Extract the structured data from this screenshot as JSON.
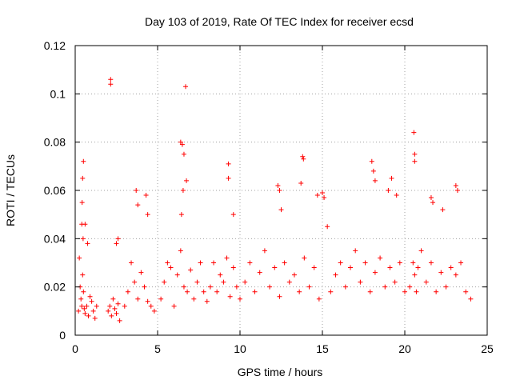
{
  "chart_data": {
    "type": "scatter",
    "title": "Day 103 of 2019, Rate Of TEC Index for receiver ecsd",
    "xlabel": "GPS time / hours",
    "ylabel": "ROTI / TECUs",
    "xlim": [
      0,
      25
    ],
    "ylim": [
      0,
      0.12
    ],
    "xticks": [
      0,
      5,
      10,
      15,
      20,
      25
    ],
    "xtick_labels": [
      "0",
      "5",
      "10",
      "15",
      "20",
      "25"
    ],
    "yticks": [
      0,
      0.02,
      0.04,
      0.06,
      0.08,
      0.1,
      0.12
    ],
    "ytick_labels": [
      "0",
      "0.02",
      "0.04",
      "0.06",
      "0.08",
      "0.1",
      "0.12"
    ],
    "grid": true,
    "marker": "+",
    "color": "#ff0000",
    "series": [
      {
        "name": "ROTI",
        "x": [
          0.2,
          0.3,
          0.35,
          0.4,
          0.45,
          0.5,
          0.55,
          0.6,
          0.7,
          0.8,
          0.9,
          1.0,
          1.1,
          1.2,
          1.3,
          0.25,
          0.4,
          0.45,
          0.5,
          0.42,
          0.48,
          0.6,
          0.75,
          2.0,
          2.1,
          2.2,
          2.3,
          2.4,
          2.5,
          2.6,
          2.7,
          2.15,
          2.15,
          2.5,
          2.6,
          3.0,
          3.2,
          3.4,
          3.6,
          3.8,
          4.0,
          4.2,
          4.4,
          4.6,
          4.8,
          3.7,
          3.8,
          4.3,
          4.4,
          5.2,
          5.4,
          5.6,
          5.8,
          6.0,
          6.2,
          6.4,
          6.6,
          6.8,
          7.0,
          7.2,
          7.4,
          7.6,
          7.8,
          6.4,
          6.5,
          6.6,
          6.7,
          6.55,
          6.75,
          6.45,
          8.0,
          8.2,
          8.4,
          8.6,
          8.8,
          9.0,
          9.2,
          9.4,
          9.6,
          9.8,
          9.3,
          9.3,
          9.6,
          10.0,
          10.3,
          10.6,
          10.9,
          11.2,
          11.5,
          11.8,
          12.1,
          12.4,
          12.7,
          13.0,
          13.3,
          13.6,
          13.9,
          14.2,
          14.5,
          14.8,
          12.3,
          12.4,
          12.5,
          13.8,
          13.85,
          13.7,
          14.7,
          15.0,
          15.1,
          15.3,
          15.5,
          15.8,
          16.1,
          16.4,
          16.7,
          17.0,
          17.3,
          17.6,
          17.9,
          18.2,
          18.5,
          18.8,
          19.1,
          19.4,
          19.7,
          20.0,
          18.0,
          18.1,
          18.2,
          19.0,
          19.2,
          19.5,
          20.3,
          20.5,
          20.6,
          20.7,
          20.8,
          21.0,
          21.3,
          21.6,
          21.9,
          22.2,
          22.5,
          22.8,
          23.1,
          23.4,
          23.7,
          24.0,
          20.55,
          20.6,
          20.6,
          21.6,
          21.7,
          23.1,
          23.2,
          22.3
        ],
        "y": [
          0.01,
          0.02,
          0.015,
          0.012,
          0.025,
          0.018,
          0.011,
          0.009,
          0.012,
          0.008,
          0.016,
          0.014,
          0.01,
          0.007,
          0.012,
          0.032,
          0.046,
          0.065,
          0.072,
          0.055,
          0.04,
          0.046,
          0.038,
          0.01,
          0.012,
          0.008,
          0.015,
          0.011,
          0.009,
          0.013,
          0.006,
          0.106,
          0.104,
          0.038,
          0.04,
          0.012,
          0.018,
          0.03,
          0.022,
          0.015,
          0.026,
          0.02,
          0.014,
          0.012,
          0.01,
          0.06,
          0.054,
          0.058,
          0.05,
          0.015,
          0.022,
          0.03,
          0.028,
          0.012,
          0.025,
          0.035,
          0.02,
          0.018,
          0.027,
          0.015,
          0.022,
          0.03,
          0.018,
          0.08,
          0.079,
          0.075,
          0.103,
          0.06,
          0.064,
          0.05,
          0.014,
          0.02,
          0.03,
          0.018,
          0.025,
          0.022,
          0.032,
          0.016,
          0.028,
          0.02,
          0.071,
          0.065,
          0.05,
          0.015,
          0.022,
          0.03,
          0.018,
          0.026,
          0.035,
          0.02,
          0.028,
          0.016,
          0.03,
          0.022,
          0.025,
          0.018,
          0.032,
          0.02,
          0.028,
          0.015,
          0.062,
          0.06,
          0.052,
          0.074,
          0.073,
          0.063,
          0.058,
          0.059,
          0.057,
          0.045,
          0.018,
          0.025,
          0.03,
          0.02,
          0.028,
          0.035,
          0.022,
          0.03,
          0.018,
          0.026,
          0.032,
          0.02,
          0.028,
          0.022,
          0.03,
          0.018,
          0.072,
          0.068,
          0.064,
          0.06,
          0.065,
          0.058,
          0.02,
          0.03,
          0.025,
          0.018,
          0.028,
          0.035,
          0.022,
          0.03,
          0.018,
          0.026,
          0.02,
          0.028,
          0.025,
          0.03,
          0.018,
          0.015,
          0.084,
          0.075,
          0.072,
          0.057,
          0.055,
          0.062,
          0.06,
          0.052
        ]
      }
    ]
  }
}
